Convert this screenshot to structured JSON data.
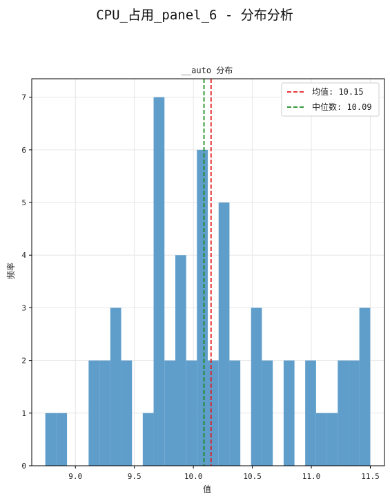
{
  "chart_data": {
    "type": "histogram",
    "suptitle": "CPU_占用_panel_6 - 分布分析",
    "title": "__auto 分布",
    "xlabel": "值",
    "ylabel": "频率",
    "xlim": [
      8.63,
      11.62
    ],
    "ylim": [
      0,
      7.35
    ],
    "xticks": [
      9.0,
      9.5,
      10.0,
      10.5,
      11.0,
      11.5
    ],
    "xtick_labels": [
      "9.0",
      "9.5",
      "10.0",
      "10.5",
      "11.0",
      "11.5"
    ],
    "yticks": [
      0,
      1,
      2,
      3,
      4,
      5,
      6,
      7
    ],
    "ytick_labels": [
      "0",
      "1",
      "2",
      "3",
      "4",
      "5",
      "6",
      "7"
    ],
    "grid": true,
    "bar_color": "#5f9ecb",
    "bins": [
      {
        "start": 8.745,
        "end": 8.837,
        "count": 1
      },
      {
        "start": 8.837,
        "end": 8.929,
        "count": 1
      },
      {
        "start": 8.929,
        "end": 9.021,
        "count": 0
      },
      {
        "start": 9.021,
        "end": 9.112,
        "count": 0
      },
      {
        "start": 9.112,
        "end": 9.204,
        "count": 2
      },
      {
        "start": 9.204,
        "end": 9.296,
        "count": 2
      },
      {
        "start": 9.296,
        "end": 9.388,
        "count": 3
      },
      {
        "start": 9.388,
        "end": 9.48,
        "count": 2
      },
      {
        "start": 9.48,
        "end": 9.571,
        "count": 0
      },
      {
        "start": 9.571,
        "end": 9.663,
        "count": 1
      },
      {
        "start": 9.663,
        "end": 9.755,
        "count": 7
      },
      {
        "start": 9.755,
        "end": 9.847,
        "count": 2
      },
      {
        "start": 9.847,
        "end": 9.939,
        "count": 4
      },
      {
        "start": 9.939,
        "end": 10.03,
        "count": 2
      },
      {
        "start": 10.03,
        "end": 10.122,
        "count": 6
      },
      {
        "start": 10.122,
        "end": 10.214,
        "count": 2
      },
      {
        "start": 10.214,
        "end": 10.306,
        "count": 5
      },
      {
        "start": 10.306,
        "end": 10.398,
        "count": 2
      },
      {
        "start": 10.398,
        "end": 10.489,
        "count": 0
      },
      {
        "start": 10.489,
        "end": 10.581,
        "count": 3
      },
      {
        "start": 10.581,
        "end": 10.673,
        "count": 2
      },
      {
        "start": 10.673,
        "end": 10.765,
        "count": 0
      },
      {
        "start": 10.765,
        "end": 10.857,
        "count": 2
      },
      {
        "start": 10.857,
        "end": 10.948,
        "count": 0
      },
      {
        "start": 10.948,
        "end": 11.04,
        "count": 2
      },
      {
        "start": 11.04,
        "end": 11.132,
        "count": 1
      },
      {
        "start": 11.132,
        "end": 11.224,
        "count": 1
      },
      {
        "start": 11.224,
        "end": 11.316,
        "count": 2
      },
      {
        "start": 11.316,
        "end": 11.407,
        "count": 2
      },
      {
        "start": 11.407,
        "end": 11.499,
        "count": 3
      }
    ],
    "mean": {
      "value": 10.15,
      "label": "均值: 10.15",
      "color": "#e41a1c"
    },
    "median": {
      "value": 10.09,
      "label": "中位数: 10.09",
      "color": "#1a8a1a"
    },
    "legend_position": "top-right"
  }
}
